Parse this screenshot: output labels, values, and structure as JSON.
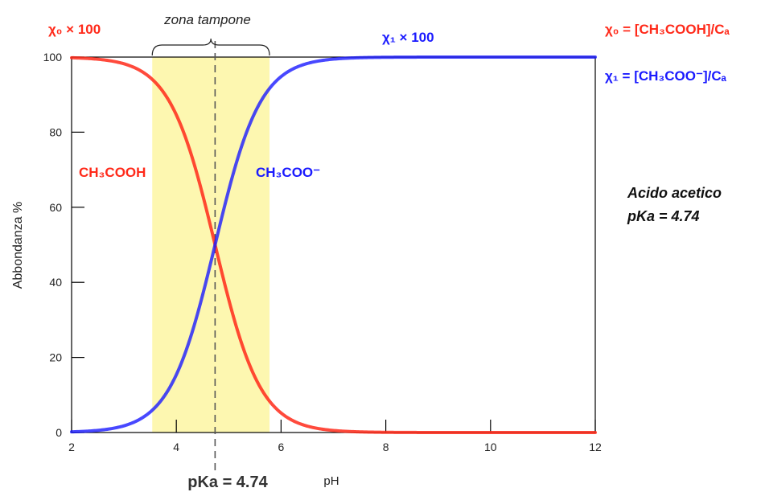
{
  "chart_data": {
    "type": "line",
    "ylabel": "Abbondanza %",
    "xlabel": "pH",
    "xlim": [
      2,
      12
    ],
    "ylim": [
      0,
      100
    ],
    "x_ticks": [
      2,
      4,
      6,
      8,
      10,
      12
    ],
    "y_ticks": [
      0,
      20,
      40,
      60,
      80,
      100
    ],
    "pKa": 4.74,
    "pKa_label": "pKa = 4.74",
    "buffer_zone": {
      "label": "zona tampone",
      "range": [
        3.54,
        5.78
      ]
    },
    "series": [
      {
        "name": "CH₃COOH",
        "curve_label": "χ₀ × 100",
        "formula": "χ₀ = [CH₃COOH]/Cₐ",
        "color": "#ff2a1a",
        "x": [
          2,
          3,
          3.5,
          4,
          4.5,
          4.74,
          5,
          5.5,
          6,
          6.5,
          7,
          8,
          10,
          12
        ],
        "y": [
          99.8,
          98.2,
          94.5,
          84.6,
          63.5,
          50.0,
          35.5,
          14.8,
          5.2,
          1.7,
          0.5,
          0.1,
          0,
          0
        ]
      },
      {
        "name": "CH₃COO⁻",
        "curve_label": "χ₁ × 100",
        "formula": "χ₁ = [CH₃COO⁻]/Cₐ",
        "color": "#1a1aff",
        "x": [
          2,
          3,
          3.5,
          4,
          4.5,
          4.74,
          5,
          5.5,
          6,
          6.5,
          7,
          8,
          10,
          12
        ],
        "y": [
          0.2,
          1.8,
          5.5,
          15.4,
          36.5,
          50.0,
          64.5,
          85.2,
          94.8,
          98.3,
          99.5,
          99.9,
          100,
          100
        ]
      }
    ],
    "annotation": [
      "Acido acetico",
      "pKa = 4.74"
    ]
  }
}
